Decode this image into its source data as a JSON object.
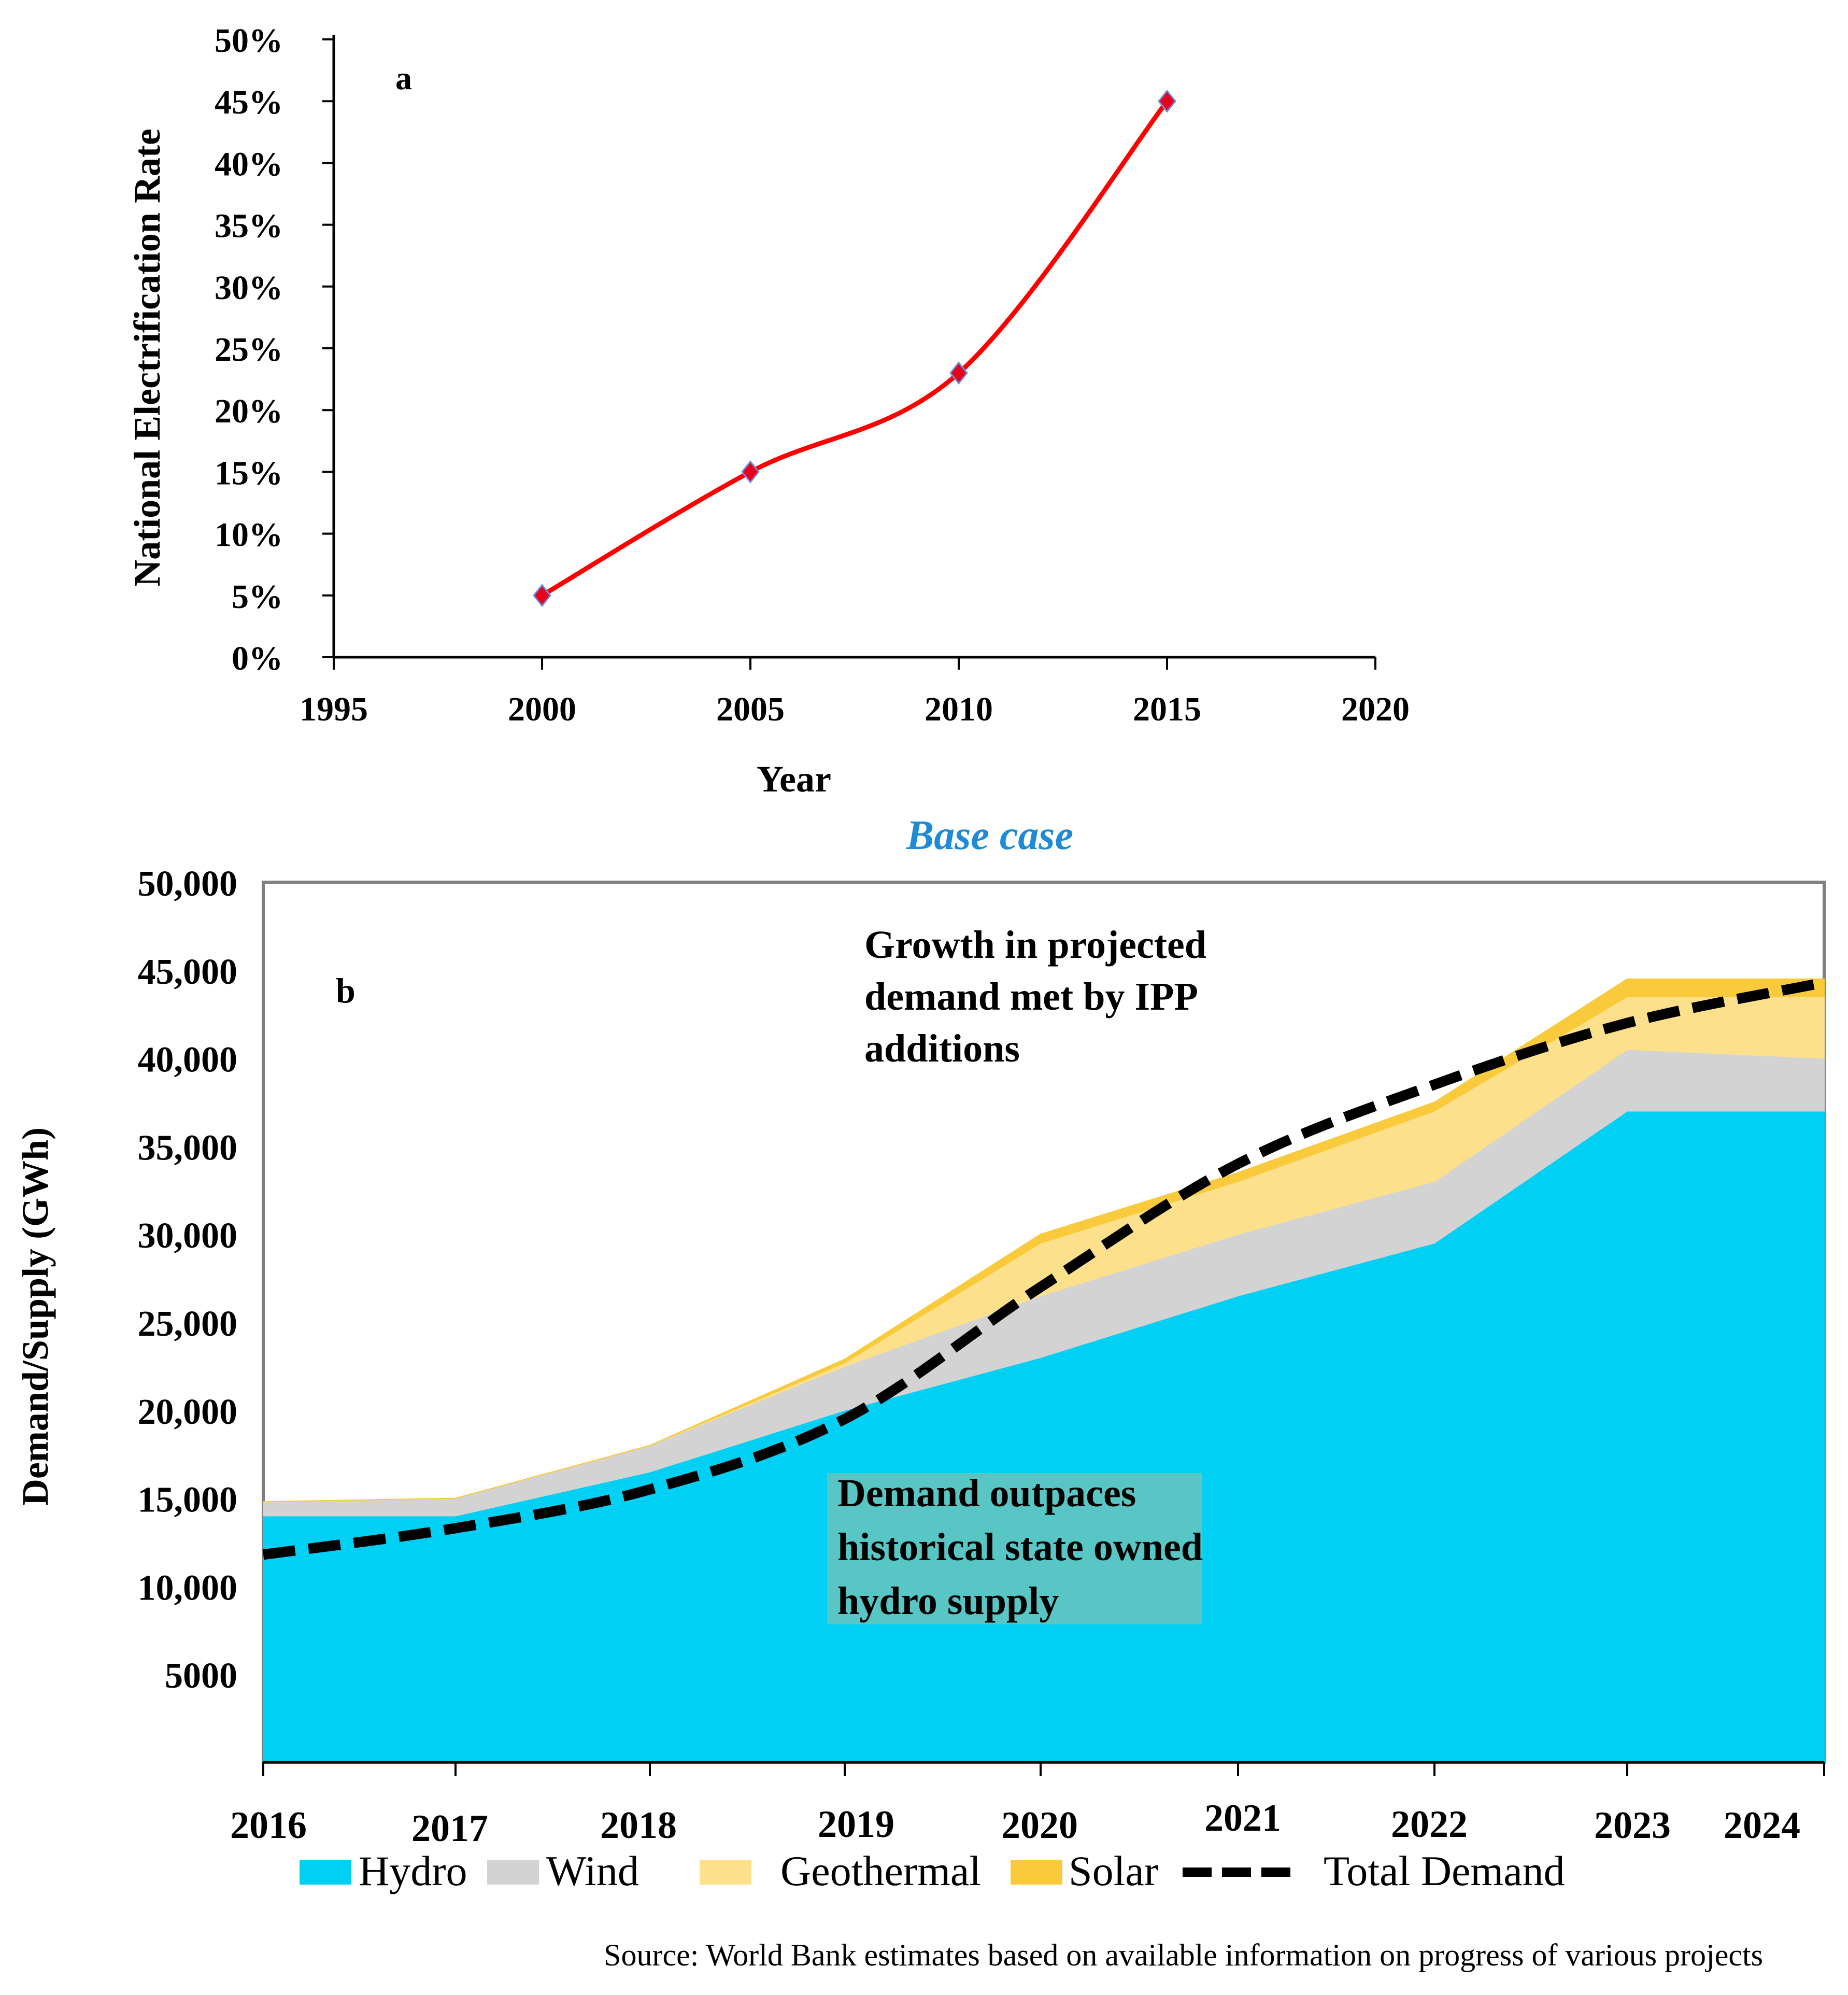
{
  "chart_data": [
    {
      "type": "line",
      "panel_label": "a",
      "title": "",
      "xlabel": "Year",
      "ylabel": "National Electrification Rate",
      "x_ticks": [
        1995,
        2000,
        2005,
        2010,
        2015,
        2020
      ],
      "y_ticks": [
        "0%",
        "5%",
        "10%",
        "15%",
        "20%",
        "25%",
        "30%",
        "35%",
        "40%",
        "45%",
        "50%"
      ],
      "xlim": [
        1995,
        2020
      ],
      "ylim": [
        0,
        50
      ],
      "series": [
        {
          "name": "National Electrification Rate",
          "color": "#ff0000",
          "marker_color": "#e8001c",
          "x": [
            2000,
            2005,
            2010,
            2015
          ],
          "y": [
            5,
            15,
            23,
            45
          ]
        }
      ]
    },
    {
      "type": "area",
      "panel_label": "b",
      "title": "Base case",
      "xlabel": "",
      "ylabel": "Demand/Supply (GWh)",
      "categories": [
        "2016",
        "2017",
        "2018",
        "2019",
        "2020",
        "2021",
        "2022",
        "2023",
        "2024"
      ],
      "y_ticks": [
        "5000",
        "10,000",
        "15,000",
        "20,000",
        "25,000",
        "30,000",
        "35,000",
        "40,000",
        "45,000",
        "50,000"
      ],
      "ylim": [
        0,
        50000
      ],
      "series": [
        {
          "name": "Hydro",
          "color": "#00d1f4",
          "values": [
            14000,
            14000,
            16500,
            20000,
            23000,
            26500,
            29500,
            37000,
            37000
          ]
        },
        {
          "name": "Wind",
          "color": "#d3d3d3",
          "values": [
            800,
            1000,
            1500,
            2500,
            3500,
            3500,
            3500,
            3500,
            3000
          ]
        },
        {
          "name": "Geothermal",
          "color": "#fce08b",
          "values": [
            0,
            0,
            0,
            200,
            3000,
            3000,
            4000,
            3000,
            3500
          ]
        },
        {
          "name": "Solar",
          "color": "#f9ca3b",
          "values": [
            0,
            0,
            0,
            200,
            500,
            500,
            500,
            1000,
            1000
          ]
        },
        {
          "name": "Total Demand",
          "color": "#000000",
          "values": [
            11800,
            13300,
            15500,
            19500,
            27000,
            34000,
            38500,
            42000,
            44300
          ]
        }
      ],
      "annotations": [
        {
          "lines": [
            "Growth in projected",
            "demand met by IPP",
            "additions"
          ]
        },
        {
          "lines": [
            "Demand outpaces",
            "historical state owned",
            "hydro supply"
          ]
        }
      ],
      "source": "Source: World Bank estimates based on available information on progress of various projects"
    }
  ],
  "colors": {
    "title_blue": "#1e8bd6",
    "annotation_box": "#57c6c4",
    "axis": "#000000",
    "frame": "#7f7f7f"
  }
}
